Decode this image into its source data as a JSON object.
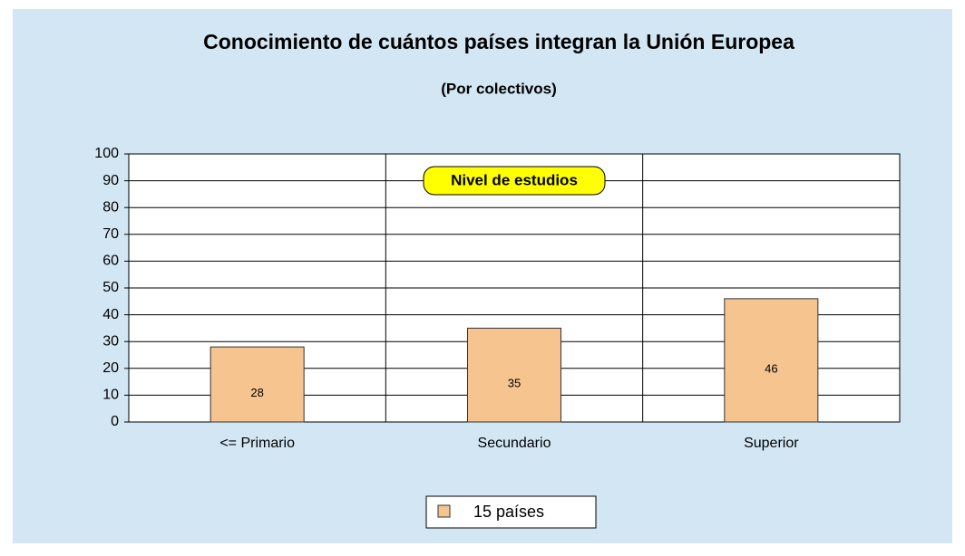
{
  "chart_data": {
    "type": "bar",
    "title": "Conocimiento de cuántos países integran la Unión Europea",
    "subtitle": "(Por colectivos)",
    "annotation": "Nivel de estudios",
    "categories": [
      "<= Primario",
      "Secundario",
      "Superior"
    ],
    "series": [
      {
        "name": "15 países",
        "color": "#f5c48f",
        "values": [
          28,
          35,
          46
        ]
      }
    ],
    "ylim": [
      0,
      100
    ],
    "yticks": [
      0,
      10,
      20,
      30,
      40,
      50,
      60,
      70,
      80,
      90,
      100
    ],
    "grid": true,
    "legend": "bottom"
  }
}
